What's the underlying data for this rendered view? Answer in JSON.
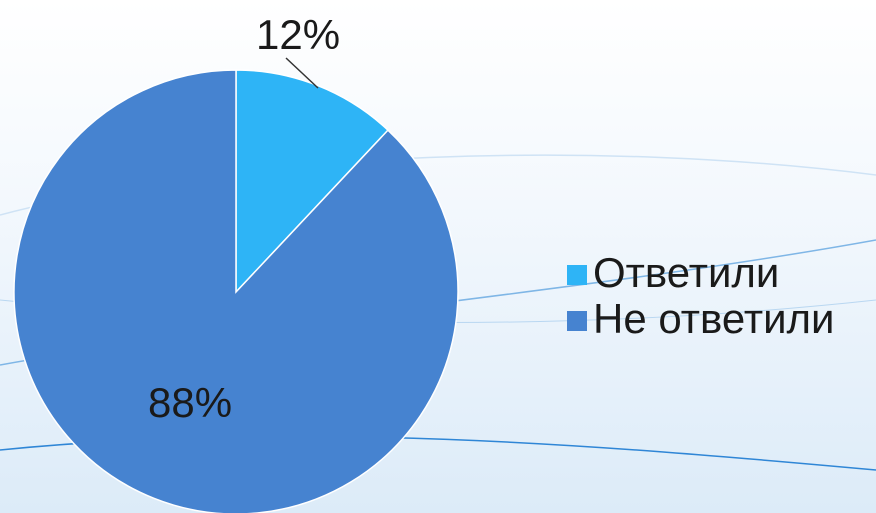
{
  "chart_data": {
    "type": "pie",
    "categories": [
      "Ответили",
      "Не ответили"
    ],
    "values": [
      12,
      88
    ],
    "data_labels": [
      "12%",
      "88%"
    ],
    "colors": [
      "#2eb4f6",
      "#4683d0"
    ],
    "legend": {
      "entries": [
        "Ответили",
        "Не ответили"
      ],
      "placement": "right"
    }
  }
}
